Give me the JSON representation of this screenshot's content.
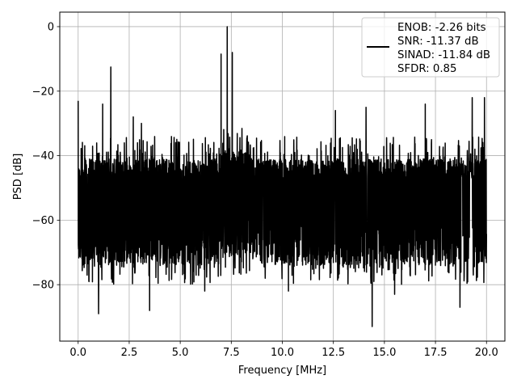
{
  "chart_data": {
    "type": "line",
    "title": "",
    "xlabel": "Frequency [MHz]",
    "ylabel": "PSD [dB]",
    "xlim": [
      -0.9,
      20.9
    ],
    "ylim": [
      -97.5,
      4.5
    ],
    "grid": true,
    "line_color": "#000000",
    "legend_placement": "upper-right",
    "legend": [
      "ENOB: -2.26 bits",
      "SNR: -11.37 dB",
      "SINAD: -11.84 dB",
      "SFDR: 0.85"
    ],
    "x_ticks": [
      0.0,
      2.5,
      5.0,
      7.5,
      10.0,
      12.5,
      15.0,
      17.5,
      20.0
    ],
    "x_tick_labels": [
      "0.0",
      "2.5",
      "5.0",
      "7.5",
      "10.0",
      "12.5",
      "15.0",
      "17.5",
      "20.0"
    ],
    "y_ticks": [
      0,
      -20,
      -40,
      -60,
      -80
    ],
    "y_tick_labels": [
      "0",
      "−20",
      "−40",
      "−60",
      "−80"
    ],
    "noise_floor": {
      "upper_db": -44,
      "lower_db": -64,
      "x_range": [
        0,
        20
      ]
    },
    "peaks": [
      {
        "x": 0.0,
        "y": -23
      },
      {
        "x": 1.2,
        "y": -24
      },
      {
        "x": 1.6,
        "y": -12.5
      },
      {
        "x": 2.7,
        "y": -28
      },
      {
        "x": 3.1,
        "y": -30
      },
      {
        "x": 7.0,
        "y": -8.5
      },
      {
        "x": 7.3,
        "y": 0
      },
      {
        "x": 7.55,
        "y": -8
      },
      {
        "x": 12.6,
        "y": -26
      },
      {
        "x": 14.1,
        "y": -25
      },
      {
        "x": 17.0,
        "y": -24
      },
      {
        "x": 19.3,
        "y": -22
      },
      {
        "x": 19.9,
        "y": -22
      }
    ],
    "dips": [
      {
        "x": 1.0,
        "y": -89
      },
      {
        "x": 3.5,
        "y": -88
      },
      {
        "x": 6.2,
        "y": -82
      },
      {
        "x": 10.3,
        "y": -82
      },
      {
        "x": 14.4,
        "y": -93
      },
      {
        "x": 15.5,
        "y": -83
      },
      {
        "x": 18.7,
        "y": -87
      }
    ]
  }
}
